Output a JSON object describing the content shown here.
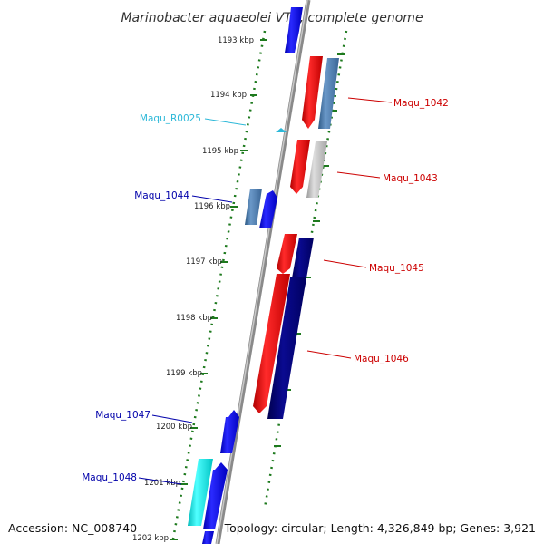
{
  "title": "Marinobacter aquaeolei VT8, complete genome",
  "footer": {
    "accession": "Accession: NC_008740",
    "topology": "Topology: circular; Length: 4,326,849 bp; Genes: 3,921"
  },
  "colors": {
    "backbone": "#8a8a8a",
    "tick": "#1e7a1e",
    "forward_gene": "#1010ee",
    "reverse_gene": "#ee1010",
    "dark_gene": "#00007a",
    "steel_gene": "#4a78a8",
    "gray_gene": "#b8b8b8",
    "cyan_gene": "#10e8e8",
    "rna_label": "#2cb8d8",
    "label_red": "#cc0000",
    "label_blue": "#0000aa"
  },
  "kbp_labels": [
    "1193 kbp",
    "1194 kbp",
    "1195 kbp",
    "1196 kbp",
    "1197 kbp",
    "1198 kbp",
    "1199 kbp",
    "1200 kbp",
    "1201 kbp",
    "1202 kbp"
  ],
  "gene_labels": [
    "Maqu_1042",
    "Maqu_R0025",
    "Maqu_1043",
    "Maqu_1044",
    "Maqu_1045",
    "Maqu_1046",
    "Maqu_1047",
    "Maqu_1048"
  ]
}
